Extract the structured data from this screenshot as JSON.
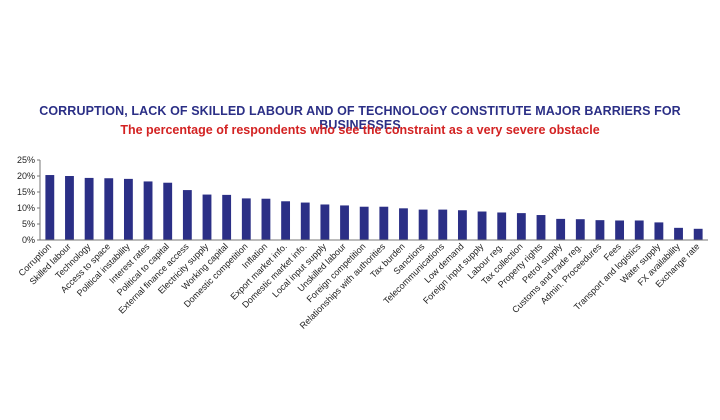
{
  "chart_data": {
    "type": "bar",
    "title": "CORRUPTION, LACK OF SKILLED LABOUR AND OF TECHNOLOGY CONSTITUTE MAJOR BARRIERS FOR BUSINESSES",
    "subtitle": "The percentage of respondents who see the constraint as a very severe obstacle",
    "xlabel": "",
    "ylabel": "",
    "ylim": [
      0,
      25
    ],
    "yticks": [
      "0%",
      "5%",
      "10%",
      "15%",
      "20%",
      "25%"
    ],
    "grid": false,
    "bar_color": "#2b2f86",
    "categories": [
      "Corruption",
      "Skilled labour",
      "Technology",
      "Access to space",
      "Political instability",
      "Interest rates",
      "Political to capital",
      "External finance access",
      "Electricity supply",
      "Working capital",
      "Domestic competition",
      "Inflation",
      "Export market info.",
      "Domestic market info.",
      "Local input supply",
      "Unskilled labour",
      "Foreign competition",
      "Relationships with authorities",
      "Tax burden",
      "Sanctions",
      "Telecommunications",
      "Low demand",
      "Foreign input supply",
      "Labour reg.",
      "Tax collection",
      "Property rights",
      "Petrol supply",
      "Customs and trade reg.",
      "Admin. Proceedures",
      "Fees",
      "Transport and logistics",
      "Water supply",
      "FX availability",
      "Exchange rate"
    ],
    "values": [
      20.3,
      20.0,
      19.4,
      19.3,
      19.1,
      18.3,
      17.9,
      15.6,
      14.2,
      14.1,
      13.0,
      12.9,
      12.1,
      11.7,
      11.1,
      10.8,
      10.4,
      10.4,
      9.9,
      9.5,
      9.5,
      9.3,
      8.9,
      8.6,
      8.4,
      7.8,
      6.6,
      6.5,
      6.2,
      6.1,
      6.1,
      5.5,
      3.8,
      3.5
    ]
  }
}
